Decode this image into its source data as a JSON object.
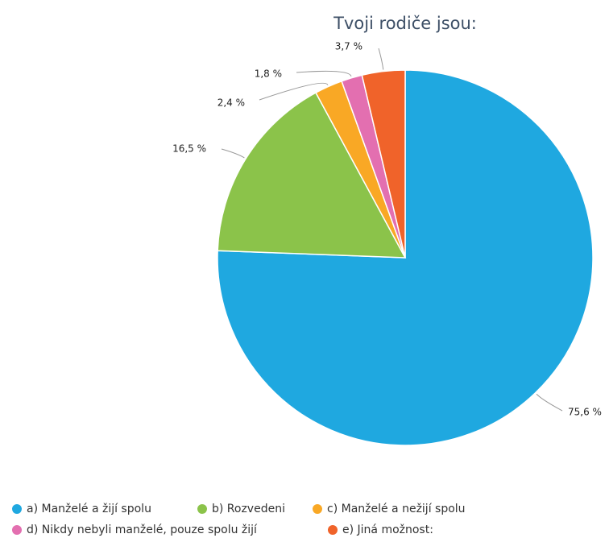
{
  "chart_data": {
    "type": "pie",
    "title": "Tvoji rodiče jsou:",
    "categories": [
      "a) Manželé a žijí spolu",
      "b) Rozvedeni",
      "c) Manželé a nežijí spolu",
      "d) Nikdy nebyli manželé, pouze spolu žijí",
      "e) Jiná možnost:"
    ],
    "values": [
      75.6,
      16.5,
      2.4,
      1.8,
      3.7
    ],
    "value_labels": [
      "75,6 %",
      "16,5 %",
      "2,4 %",
      "1,8 %",
      "3,7 %"
    ],
    "colors": [
      "#1fa8e0",
      "#8bc34a",
      "#f9a825",
      "#e36fb0",
      "#f0632a"
    ],
    "legend": "bottom"
  }
}
